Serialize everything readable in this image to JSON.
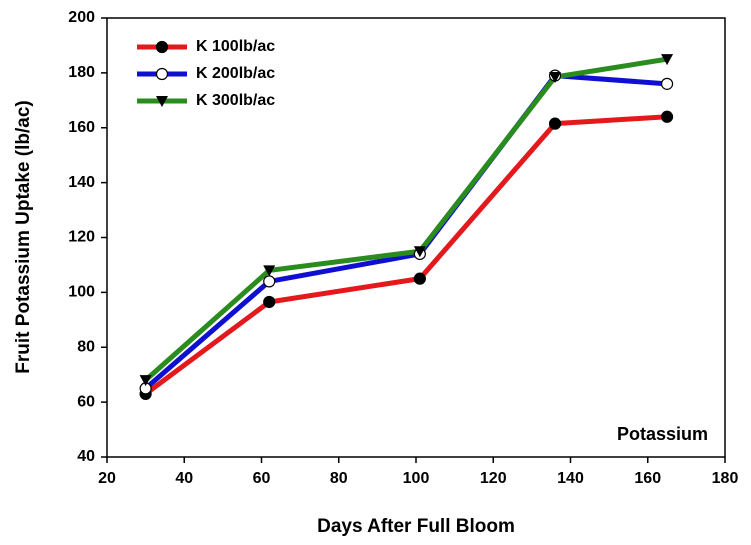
{
  "chart_data": {
    "type": "line",
    "xlabel": "Days After Full Bloom",
    "ylabel": "Fruit Potassium Uptake (lb/ac)",
    "annotation": "Potassium",
    "x": [
      30,
      62,
      101,
      136,
      165
    ],
    "series": [
      {
        "name": "K 100lb/ac",
        "color": "#e3191c",
        "marker": "circle",
        "values": [
          63,
          96.5,
          105,
          161.5,
          164
        ]
      },
      {
        "name": "K 200lb/ac",
        "color": "#0f0fd2",
        "marker": "open-circle",
        "values": [
          65,
          104,
          114,
          179,
          176
        ]
      },
      {
        "name": "K 300lb/ac",
        "color": "#2a8c1e",
        "marker": "triangle-down",
        "values": [
          68,
          108,
          115,
          178.5,
          185
        ]
      }
    ],
    "xlim": [
      20,
      180
    ],
    "xticks": [
      20,
      40,
      60,
      80,
      100,
      120,
      140,
      160,
      180
    ],
    "ylim": [
      40,
      200
    ],
    "yticks": [
      40,
      60,
      80,
      100,
      120,
      140,
      160,
      180,
      200
    ],
    "grid": false,
    "legend": "upper left"
  }
}
